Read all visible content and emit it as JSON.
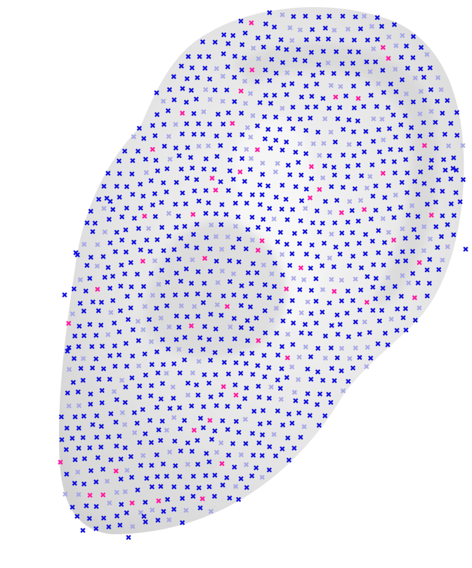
{
  "scene": {
    "subject": "ear-mesh-landmark-scatter",
    "colors": {
      "background": "#ffffff",
      "surface": "#e6e6e6",
      "surface_shade": "#cfcfcf",
      "surface_highlight": "#f8f8f8",
      "marker_primary": "#1010dd",
      "marker_faded": "#9a9ae6",
      "marker_highlight": "#ff1aa0"
    },
    "marker_glyph": "✖",
    "icon_names": [
      "cross-marker-icon"
    ]
  }
}
